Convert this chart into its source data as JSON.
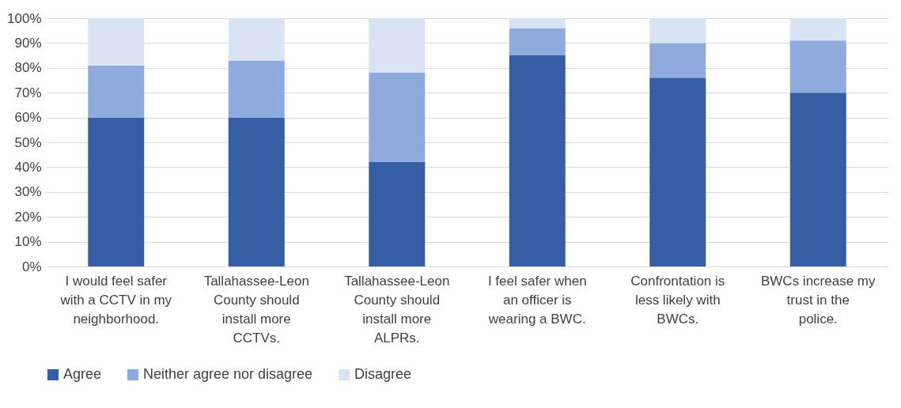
{
  "chart_data": {
    "type": "bar",
    "stacked": true,
    "categories": [
      "I would feel safer with a CCTV in my neighborhood.",
      "Tallahassee-Leon County should install more CCTVs.",
      "Tallahassee-Leon County should install more ALPRs.",
      "I feel safer when an officer is wearing a BWC.",
      "Confrontation is less likely with BWCs.",
      "BWCs increase my trust in the police."
    ],
    "series": [
      {
        "name": "Agree",
        "color": "#365ea4",
        "values": [
          60,
          60,
          42,
          85,
          76,
          70
        ]
      },
      {
        "name": "Neither agree nor disagree",
        "color": "#8faadc",
        "values": [
          21,
          23,
          36,
          11,
          14,
          21
        ]
      },
      {
        "name": "Disagree",
        "color": "#dae3f3",
        "values": [
          19,
          17,
          22,
          4,
          10,
          9
        ]
      }
    ],
    "ylim": [
      0,
      100
    ],
    "yticks": [
      {
        "value": 0,
        "label": "0%"
      },
      {
        "value": 10,
        "label": "10%"
      },
      {
        "value": 20,
        "label": "20%"
      },
      {
        "value": 30,
        "label": "30%"
      },
      {
        "value": 40,
        "label": "40%"
      },
      {
        "value": 50,
        "label": "50%"
      },
      {
        "value": 60,
        "label": "60%"
      },
      {
        "value": 70,
        "label": "70%"
      },
      {
        "value": 80,
        "label": "80%"
      },
      {
        "value": 90,
        "label": "90%"
      },
      {
        "value": 100,
        "label": "100%"
      }
    ],
    "grid": "y",
    "legend": "bottom"
  }
}
